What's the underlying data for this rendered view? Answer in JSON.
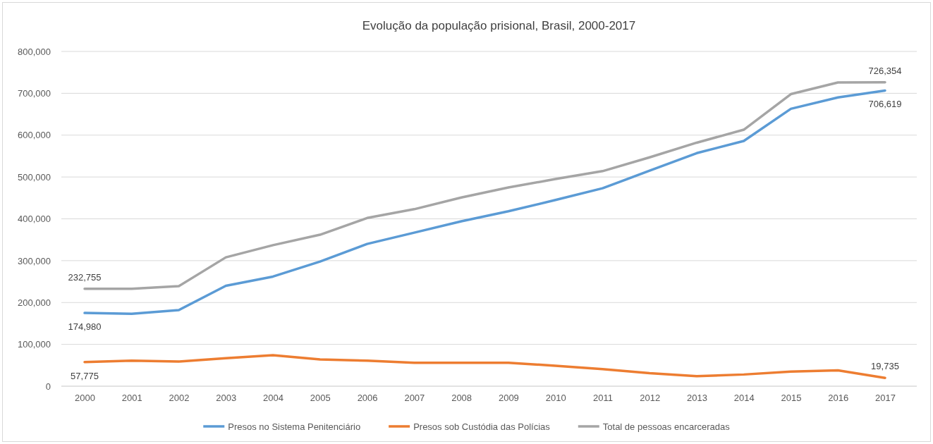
{
  "chart_data": {
    "type": "line",
    "title": "Evolução da população prisional, Brasil, 2000-2017",
    "categories": [
      "2000",
      "2001",
      "2002",
      "2003",
      "2004",
      "2005",
      "2006",
      "2007",
      "2008",
      "2009",
      "2010",
      "2011",
      "2012",
      "2013",
      "2014",
      "2015",
      "2016",
      "2017"
    ],
    "series": [
      {
        "name": "Presos no Sistema Penitenciário",
        "color": "#5b9bd5",
        "values": [
          174980,
          173000,
          182000,
          240000,
          262000,
          298000,
          340000,
          367000,
          394000,
          418000,
          445000,
          473000,
          515000,
          557000,
          586000,
          663000,
          690000,
          706619
        ],
        "value_labels": [
          "174,980",
          null,
          null,
          null,
          null,
          null,
          null,
          null,
          null,
          null,
          null,
          null,
          null,
          null,
          null,
          null,
          null,
          "706,619"
        ]
      },
      {
        "name": "Presos sob Custódia das Polícias",
        "color": "#ed7d31",
        "values": [
          57775,
          61000,
          59000,
          67000,
          74000,
          64000,
          61000,
          56000,
          56000,
          56000,
          49000,
          41000,
          31000,
          24000,
          28000,
          35000,
          38000,
          19735
        ],
        "value_labels": [
          "57,775",
          null,
          null,
          null,
          null,
          null,
          null,
          null,
          null,
          null,
          null,
          null,
          null,
          null,
          null,
          null,
          null,
          "19,735"
        ]
      },
      {
        "name": "Total de pessoas encarceradas",
        "color": "#a5a5a5",
        "values": [
          232755,
          233000,
          239000,
          308000,
          337000,
          362000,
          402000,
          423000,
          451000,
          475000,
          495000,
          514000,
          547000,
          582000,
          613000,
          698000,
          726000,
          726354
        ],
        "value_labels": [
          "232,755",
          null,
          null,
          null,
          null,
          null,
          null,
          null,
          null,
          null,
          null,
          null,
          null,
          null,
          null,
          null,
          null,
          "726,354"
        ]
      }
    ],
    "ylim": [
      0,
      800000
    ],
    "yticks": [
      {
        "value": 0,
        "label": "0"
      },
      {
        "value": 100000,
        "label": "100,000"
      },
      {
        "value": 200000,
        "label": "200,000"
      },
      {
        "value": 300000,
        "label": "300,000"
      },
      {
        "value": 400000,
        "label": "400,000"
      },
      {
        "value": 500000,
        "label": "500,000"
      },
      {
        "value": 600000,
        "label": "600,000"
      },
      {
        "value": 700000,
        "label": "700,000"
      },
      {
        "value": 800000,
        "label": "800,000"
      }
    ],
    "grid": "y",
    "legend": "bottom",
    "marker": "none",
    "line_style": "solid"
  }
}
